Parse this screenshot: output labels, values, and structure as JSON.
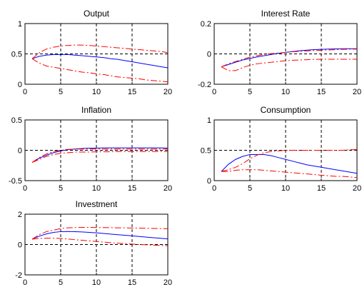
{
  "chart_data": [
    {
      "type": "line",
      "title": "Output",
      "xlim": [
        0,
        20
      ],
      "ylim": [
        0,
        1
      ],
      "xticks": [
        "0",
        "5",
        "10",
        "15",
        "20"
      ],
      "yticks": [
        "0",
        "0.5",
        "1"
      ],
      "zero_line": 0.5,
      "x": [
        1,
        2,
        3,
        4,
        5,
        6,
        7,
        8,
        9,
        10,
        11,
        12,
        13,
        14,
        15,
        16,
        17,
        18,
        19,
        20
      ],
      "series": [
        {
          "role": "median",
          "color": "#0000ff",
          "style": "solid",
          "values": [
            0.42,
            0.46,
            0.48,
            0.49,
            0.49,
            0.49,
            0.48,
            0.47,
            0.46,
            0.45,
            0.44,
            0.42,
            0.41,
            0.39,
            0.37,
            0.35,
            0.33,
            0.31,
            0.29,
            0.27
          ]
        },
        {
          "role": "upper",
          "color": "#ff0000",
          "style": "dashdot",
          "values": [
            0.42,
            0.52,
            0.58,
            0.61,
            0.63,
            0.64,
            0.645,
            0.645,
            0.64,
            0.63,
            0.62,
            0.61,
            0.6,
            0.59,
            0.58,
            0.57,
            0.56,
            0.55,
            0.54,
            0.52
          ]
        },
        {
          "role": "lower",
          "color": "#ff0000",
          "style": "dashdot",
          "values": [
            0.42,
            0.35,
            0.3,
            0.28,
            0.26,
            0.24,
            0.22,
            0.2,
            0.19,
            0.17,
            0.16,
            0.14,
            0.12,
            0.11,
            0.1,
            0.09,
            0.07,
            0.06,
            0.05,
            0.04
          ]
        }
      ]
    },
    {
      "type": "line",
      "title": "Interest Rate",
      "xlim": [
        0,
        20
      ],
      "ylim": [
        -0.2,
        0.2
      ],
      "xticks": [
        "0",
        "5",
        "10",
        "15",
        "20"
      ],
      "yticks": [
        "-0.2",
        "0",
        "0.2"
      ],
      "zero_line": 0,
      "x": [
        1,
        2,
        3,
        4,
        5,
        6,
        7,
        8,
        9,
        10,
        11,
        12,
        13,
        14,
        15,
        16,
        17,
        18,
        19,
        20
      ],
      "series": [
        {
          "role": "median",
          "color": "#0000ff",
          "style": "solid",
          "values": [
            -0.085,
            -0.07,
            -0.055,
            -0.04,
            -0.03,
            -0.02,
            -0.012,
            -0.004,
            0.004,
            0.01,
            0.016,
            0.021,
            0.025,
            0.028,
            0.03,
            0.032,
            0.033,
            0.034,
            0.034,
            0.034
          ]
        },
        {
          "role": "upper",
          "color": "#ff0000",
          "style": "dashdot",
          "values": [
            -0.085,
            -0.065,
            -0.05,
            -0.035,
            -0.022,
            -0.012,
            -0.004,
            0.002,
            0.006,
            0.01,
            0.014,
            0.017,
            0.02,
            0.022,
            0.024,
            0.026,
            0.028,
            0.03,
            0.031,
            0.032
          ]
        },
        {
          "role": "lower",
          "color": "#ff0000",
          "style": "dashdot",
          "values": [
            -0.085,
            -0.11,
            -0.11,
            -0.09,
            -0.075,
            -0.065,
            -0.06,
            -0.055,
            -0.05,
            -0.045,
            -0.042,
            -0.04,
            -0.038,
            -0.036,
            -0.035,
            -0.035,
            -0.035,
            -0.035,
            -0.035,
            -0.035
          ]
        }
      ]
    },
    {
      "type": "line",
      "title": "Inflation",
      "xlim": [
        0,
        20
      ],
      "ylim": [
        -0.5,
        0.5
      ],
      "xticks": [
        "0",
        "5",
        "10",
        "15",
        "20"
      ],
      "yticks": [
        "-0.5",
        "0",
        "0.5"
      ],
      "zero_line": 0,
      "x": [
        1,
        2,
        3,
        4,
        5,
        6,
        7,
        8,
        9,
        10,
        11,
        12,
        13,
        14,
        15,
        16,
        17,
        18,
        19,
        20
      ],
      "series": [
        {
          "role": "median",
          "color": "#0000ff",
          "style": "solid",
          "values": [
            -0.2,
            -0.13,
            -0.08,
            -0.04,
            -0.01,
            0.01,
            0.02,
            0.03,
            0.035,
            0.035,
            0.04,
            0.04,
            0.04,
            0.04,
            0.04,
            0.04,
            0.04,
            0.04,
            0.04,
            0.035
          ]
        },
        {
          "role": "upper",
          "color": "#ff0000",
          "style": "dashdot",
          "values": [
            -0.2,
            -0.12,
            -0.06,
            -0.02,
            0.0,
            0.015,
            0.02,
            0.02,
            0.02,
            0.02,
            0.02,
            0.02,
            0.02,
            0.02,
            0.02,
            0.02,
            0.02,
            0.02,
            0.02,
            0.02
          ]
        },
        {
          "role": "lower",
          "color": "#ff0000",
          "style": "dashdot",
          "values": [
            -0.2,
            -0.15,
            -0.1,
            -0.07,
            -0.05,
            -0.04,
            -0.03,
            -0.03,
            -0.03,
            -0.025,
            -0.025,
            -0.025,
            -0.02,
            -0.02,
            -0.02,
            -0.02,
            -0.02,
            -0.02,
            -0.02,
            -0.02
          ]
        }
      ]
    },
    {
      "type": "line",
      "title": "Consumption",
      "xlim": [
        0,
        20
      ],
      "ylim": [
        0,
        1
      ],
      "xticks": [
        "0",
        "5",
        "10",
        "15",
        "20"
      ],
      "yticks": [
        "0",
        "0.5",
        "1"
      ],
      "zero_line": 0.5,
      "x": [
        1,
        2,
        3,
        4,
        5,
        6,
        7,
        8,
        9,
        10,
        11,
        12,
        13,
        14,
        15,
        16,
        17,
        18,
        19,
        20
      ],
      "series": [
        {
          "role": "median",
          "color": "#0000ff",
          "style": "solid",
          "values": [
            0.15,
            0.27,
            0.35,
            0.4,
            0.43,
            0.43,
            0.43,
            0.41,
            0.38,
            0.35,
            0.32,
            0.29,
            0.26,
            0.24,
            0.22,
            0.2,
            0.18,
            0.16,
            0.14,
            0.12
          ]
        },
        {
          "role": "upper",
          "color": "#ff0000",
          "style": "dashdot",
          "values": [
            0.15,
            0.18,
            0.22,
            0.28,
            0.36,
            0.42,
            0.46,
            0.48,
            0.49,
            0.5,
            0.5,
            0.5,
            0.5,
            0.5,
            0.5,
            0.5,
            0.5,
            0.5,
            0.51,
            0.51
          ]
        },
        {
          "role": "lower",
          "color": "#ff0000",
          "style": "dashdot",
          "values": [
            0.15,
            0.15,
            0.17,
            0.18,
            0.18,
            0.18,
            0.17,
            0.16,
            0.15,
            0.14,
            0.13,
            0.12,
            0.11,
            0.1,
            0.09,
            0.08,
            0.07,
            0.07,
            0.06,
            0.05
          ]
        }
      ]
    },
    {
      "type": "line",
      "title": "Investment",
      "xlim": [
        0,
        20
      ],
      "ylim": [
        -2,
        2
      ],
      "xticks": [
        "0",
        "5",
        "10",
        "15",
        "20"
      ],
      "yticks": [
        "-2",
        "0",
        "2"
      ],
      "zero_line": 0,
      "x": [
        1,
        2,
        3,
        4,
        5,
        6,
        7,
        8,
        9,
        10,
        11,
        12,
        13,
        14,
        15,
        16,
        17,
        18,
        19,
        20
      ],
      "series": [
        {
          "role": "median",
          "color": "#0000ff",
          "style": "solid",
          "values": [
            0.35,
            0.55,
            0.7,
            0.8,
            0.85,
            0.86,
            0.85,
            0.83,
            0.8,
            0.77,
            0.73,
            0.69,
            0.65,
            0.61,
            0.57,
            0.53,
            0.49,
            0.45,
            0.41,
            0.37
          ]
        },
        {
          "role": "upper",
          "color": "#ff0000",
          "style": "dashdot",
          "values": [
            0.35,
            0.65,
            0.85,
            0.95,
            1.05,
            1.1,
            1.12,
            1.13,
            1.13,
            1.12,
            1.12,
            1.11,
            1.1,
            1.1,
            1.09,
            1.08,
            1.07,
            1.06,
            1.05,
            1.04
          ]
        },
        {
          "role": "lower",
          "color": "#ff0000",
          "style": "dashdot",
          "values": [
            0.35,
            0.4,
            0.42,
            0.42,
            0.4,
            0.36,
            0.32,
            0.28,
            0.24,
            0.2,
            0.16,
            0.12,
            0.09,
            0.06,
            0.03,
            0.0,
            -0.02,
            -0.04,
            -0.06,
            -0.08
          ]
        }
      ]
    }
  ]
}
